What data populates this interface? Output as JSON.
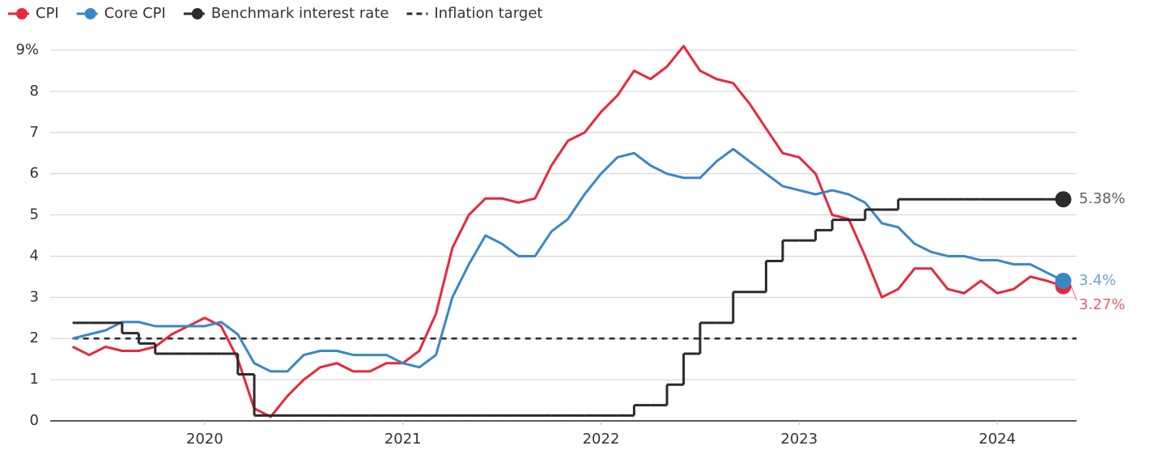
{
  "chart_data": {
    "type": "line",
    "x": [
      2019.333,
      2019.417,
      2019.5,
      2019.583,
      2019.667,
      2019.75,
      2019.833,
      2019.917,
      2020,
      2020.083,
      2020.167,
      2020.25,
      2020.333,
      2020.417,
      2020.5,
      2020.583,
      2020.667,
      2020.75,
      2020.833,
      2020.917,
      2021,
      2021.083,
      2021.167,
      2021.25,
      2021.333,
      2021.417,
      2021.5,
      2021.583,
      2021.667,
      2021.75,
      2021.833,
      2021.917,
      2022,
      2022.083,
      2022.167,
      2022.25,
      2022.333,
      2022.417,
      2022.5,
      2022.583,
      2022.667,
      2022.75,
      2022.833,
      2022.917,
      2023,
      2023.083,
      2023.167,
      2023.25,
      2023.333,
      2023.417,
      2023.5,
      2023.583,
      2023.667,
      2023.75,
      2023.833,
      2023.917,
      2024,
      2024.083,
      2024.167,
      2024.25,
      2024.333
    ],
    "series": [
      {
        "name": "CPI",
        "color": "#e8283c",
        "values": [
          1.8,
          1.6,
          1.8,
          1.7,
          1.7,
          1.8,
          2.1,
          2.3,
          2.5,
          2.3,
          1.5,
          0.3,
          0.1,
          0.6,
          1.0,
          1.3,
          1.4,
          1.2,
          1.2,
          1.4,
          1.4,
          1.7,
          2.6,
          4.2,
          5.0,
          5.4,
          5.4,
          5.3,
          5.4,
          6.2,
          6.8,
          7.0,
          7.5,
          7.9,
          8.5,
          8.3,
          8.6,
          9.1,
          8.5,
          8.3,
          8.2,
          7.7,
          7.1,
          6.5,
          6.4,
          6.0,
          5.0,
          4.9,
          4.0,
          3.0,
          3.2,
          3.7,
          3.7,
          3.2,
          3.1,
          3.4,
          3.1,
          3.2,
          3.5,
          3.4,
          3.27
        ],
        "value_labels": [
          null,
          null,
          null,
          null,
          null,
          null,
          null,
          null,
          null,
          null,
          null,
          null,
          null,
          null,
          null,
          null,
          null,
          null,
          null,
          null,
          null,
          null,
          null,
          null,
          null,
          null,
          null,
          null,
          null,
          null,
          null,
          null,
          null,
          null,
          null,
          null,
          null,
          null,
          null,
          null,
          null,
          null,
          null,
          null,
          null,
          null,
          null,
          null,
          null,
          null,
          null,
          null,
          null,
          null,
          null,
          null,
          null,
          null,
          null,
          null,
          "3.27%"
        ]
      },
      {
        "name": "Core CPI",
        "color": "#3a87c6",
        "values": [
          2.0,
          2.1,
          2.2,
          2.4,
          2.4,
          2.3,
          2.3,
          2.3,
          2.3,
          2.4,
          2.1,
          1.4,
          1.2,
          1.2,
          1.6,
          1.7,
          1.7,
          1.6,
          1.6,
          1.6,
          1.4,
          1.3,
          1.6,
          3.0,
          3.8,
          4.5,
          4.3,
          4.0,
          4.0,
          4.6,
          4.9,
          5.5,
          6.0,
          6.4,
          6.5,
          6.2,
          6.0,
          5.9,
          5.9,
          6.3,
          6.6,
          6.3,
          6.0,
          5.7,
          5.6,
          5.5,
          5.6,
          5.5,
          5.3,
          4.8,
          4.7,
          4.3,
          4.1,
          4.0,
          4.0,
          3.9,
          3.9,
          3.8,
          3.8,
          3.6,
          3.4
        ],
        "value_labels": [
          null,
          null,
          null,
          null,
          null,
          null,
          null,
          null,
          null,
          null,
          null,
          null,
          null,
          null,
          null,
          null,
          null,
          null,
          null,
          null,
          null,
          null,
          null,
          null,
          null,
          null,
          null,
          null,
          null,
          null,
          null,
          null,
          null,
          null,
          null,
          null,
          null,
          null,
          null,
          null,
          null,
          null,
          null,
          null,
          null,
          null,
          null,
          null,
          null,
          null,
          null,
          null,
          null,
          null,
          null,
          null,
          null,
          null,
          null,
          null,
          "3.4%"
        ]
      },
      {
        "name": "Benchmark interest rate",
        "color": "#2b2b2b",
        "step": true,
        "values": [
          2.38,
          2.38,
          2.38,
          2.13,
          1.88,
          1.63,
          1.63,
          1.63,
          1.63,
          1.63,
          1.13,
          0.13,
          0.13,
          0.13,
          0.13,
          0.13,
          0.13,
          0.13,
          0.13,
          0.13,
          0.13,
          0.13,
          0.13,
          0.13,
          0.13,
          0.13,
          0.13,
          0.13,
          0.13,
          0.13,
          0.13,
          0.13,
          0.13,
          0.13,
          0.38,
          0.38,
          0.88,
          1.63,
          2.38,
          2.38,
          3.13,
          3.13,
          3.88,
          4.38,
          4.38,
          4.63,
          4.88,
          4.88,
          5.13,
          5.13,
          5.38,
          5.38,
          5.38,
          5.38,
          5.38,
          5.38,
          5.38,
          5.38,
          5.38,
          5.38,
          5.38
        ],
        "value_labels": [
          null,
          null,
          null,
          null,
          null,
          null,
          null,
          null,
          null,
          null,
          null,
          null,
          null,
          null,
          null,
          null,
          null,
          null,
          null,
          null,
          null,
          null,
          null,
          null,
          null,
          null,
          null,
          null,
          null,
          null,
          null,
          null,
          null,
          null,
          null,
          null,
          null,
          null,
          null,
          null,
          null,
          null,
          null,
          null,
          null,
          null,
          null,
          null,
          null,
          null,
          null,
          null,
          null,
          null,
          null,
          null,
          null,
          null,
          null,
          null,
          "5.38%"
        ]
      }
    ],
    "target": {
      "name": "Inflation target",
      "value": 2,
      "color": "#2b2b2b"
    },
    "xlim": [
      2019.22,
      2024.4
    ],
    "xticks": [
      2020,
      2021,
      2022,
      2023,
      2024
    ],
    "ylim": [
      0,
      9
    ],
    "yticks": [
      0,
      1,
      2,
      3,
      4,
      5,
      6,
      7,
      8,
      {
        "value": 9,
        "label": "9%"
      }
    ],
    "grid": true
  }
}
